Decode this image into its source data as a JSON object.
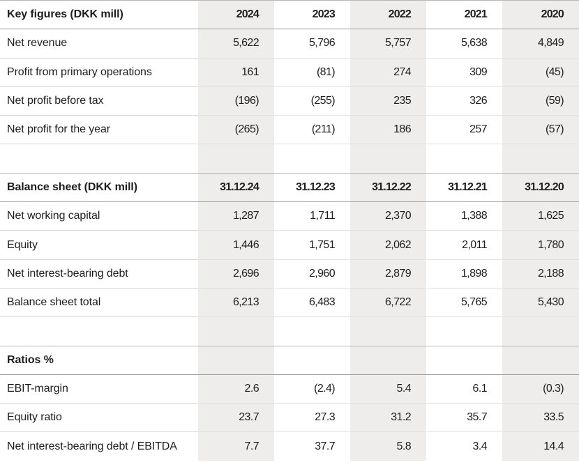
{
  "sections": [
    {
      "title": "Key figures (DKK mill)",
      "columns": [
        "2024",
        "2023",
        "2022",
        "2021",
        "2020"
      ],
      "rows": [
        {
          "label": "Net revenue",
          "values": [
            "5,622",
            "5,796",
            "5,757",
            "5,638",
            "4,849"
          ]
        },
        {
          "label": "Profit from primary operations",
          "values": [
            "161",
            "(81)",
            "274",
            "309",
            "(45)"
          ]
        },
        {
          "label": "Net profit before tax",
          "values": [
            "(196)",
            "(255)",
            "235",
            "326",
            "(59)"
          ]
        },
        {
          "label": "Net profit for the year",
          "values": [
            "(265)",
            "(211)",
            "186",
            "257",
            "(57)"
          ]
        }
      ]
    },
    {
      "title": "Balance sheet (DKK mill)",
      "columns": [
        "31.12.24",
        "31.12.23",
        "31.12.22",
        "31.12.21",
        "31.12.20"
      ],
      "rows": [
        {
          "label": "Net working capital",
          "values": [
            "1,287",
            "1,711",
            "2,370",
            "1,388",
            "1,625"
          ]
        },
        {
          "label": "Equity",
          "values": [
            "1,446",
            "1,751",
            "2,062",
            "2,011",
            "1,780"
          ]
        },
        {
          "label": "Net interest-bearing debt",
          "values": [
            "2,696",
            "2,960",
            "2,879",
            "1,898",
            "2,188"
          ]
        },
        {
          "label": "Balance sheet total",
          "values": [
            "6,213",
            "6,483",
            "6,722",
            "5,765",
            "5,430"
          ]
        }
      ]
    },
    {
      "title": "Ratios %",
      "columns": [
        "",
        "",
        "",
        "",
        ""
      ],
      "rows": [
        {
          "label": "EBIT-margin",
          "values": [
            "2.6",
            "(2.4)",
            "5.4",
            "6.1",
            "(0.3)"
          ]
        },
        {
          "label": "Equity ratio",
          "values": [
            "23.7",
            "27.3",
            "31.2",
            "35.7",
            "33.5"
          ]
        },
        {
          "label": "Net interest-bearing debt / EBITDA",
          "values": [
            "7.7",
            "37.7",
            "5.8",
            "3.4",
            "14.4"
          ]
        }
      ]
    }
  ],
  "colors": {
    "shaded_column": "#eeedeb",
    "text": "#1e1e1e",
    "rule": "#e4e2de"
  }
}
